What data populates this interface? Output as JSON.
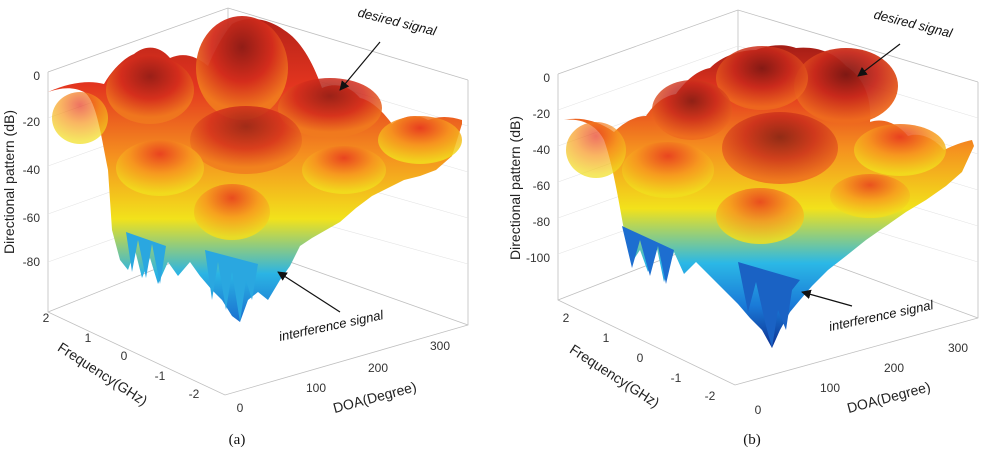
{
  "chart_data": [
    {
      "type": "surface",
      "caption": "(a)",
      "zlabel": "Directional pattern (dB)",
      "xlabel": "DOA(Degree)",
      "ylabel": "Frequency(GHz)",
      "z_ticks": [
        "0",
        "-20",
        "-40",
        "-60",
        "-80"
      ],
      "x_ticks": [
        "0",
        "100",
        "200",
        "300"
      ],
      "y_ticks": [
        "2",
        "1",
        "0",
        "-1",
        "-2"
      ],
      "zlim": [
        -95,
        0
      ],
      "xlim": [
        0,
        360
      ],
      "ylim": [
        -2.5,
        2.5
      ],
      "colormap": [
        "#0d2f8f",
        "#1a7ad8",
        "#27b6e6",
        "#f2e21b",
        "#f58a1f",
        "#e5321f",
        "#8a1a16"
      ],
      "annotations": [
        {
          "text": "desired signal",
          "target": "main-lobe-peak"
        },
        {
          "text": "interference signal",
          "target": "interference-null"
        }
      ]
    },
    {
      "type": "surface",
      "caption": "(b)",
      "zlabel": "Directional pattern (dB)",
      "xlabel": "DOA(Degree)",
      "ylabel": "Frequency(GHz)",
      "z_ticks": [
        "0",
        "-20",
        "-40",
        "-60",
        "-80",
        "-100"
      ],
      "x_ticks": [
        "0",
        "100",
        "200",
        "300"
      ],
      "y_ticks": [
        "2",
        "1",
        "0",
        "-1",
        "-2"
      ],
      "zlim": [
        -115,
        0
      ],
      "xlim": [
        0,
        360
      ],
      "ylim": [
        -2.5,
        2.5
      ],
      "colormap": [
        "#0d2f8f",
        "#1a7ad8",
        "#27b6e6",
        "#f2e21b",
        "#f58a1f",
        "#e5321f",
        "#8a1a16"
      ],
      "annotations": [
        {
          "text": "desired signal",
          "target": "main-lobe-peak"
        },
        {
          "text": "interference signal",
          "target": "interference-null"
        }
      ]
    }
  ]
}
